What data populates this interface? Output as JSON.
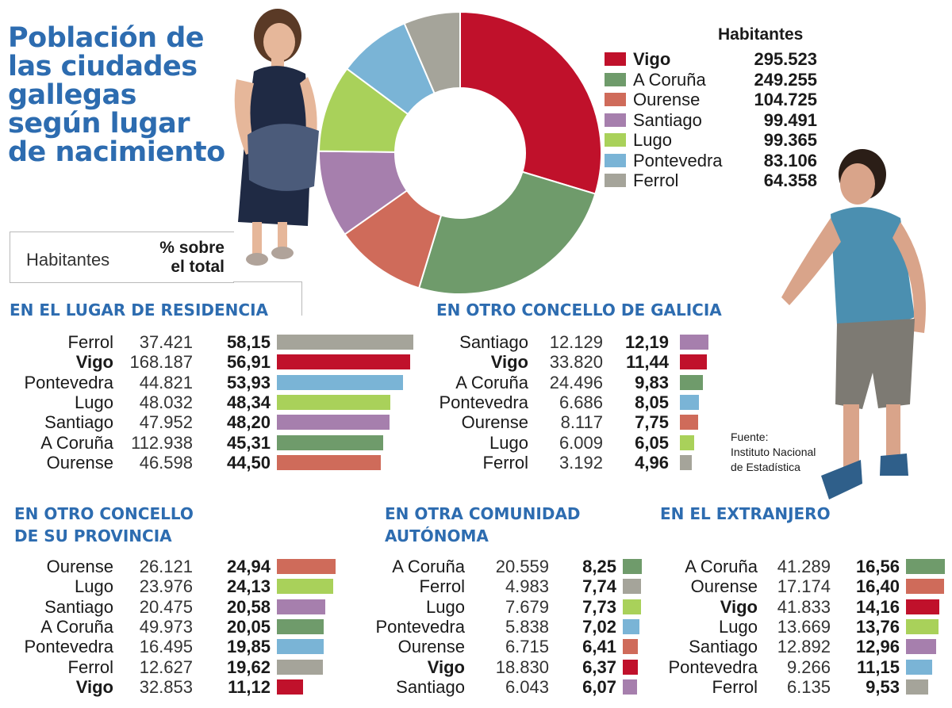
{
  "title": "Población de\nlas ciudades\ngallegas\nsegún lugar\nde nacimiento",
  "legend": {
    "habitantes_label": "Habitantes",
    "pct_label": "% sobre\nel total"
  },
  "source": "Fuente:\nInstituto Nacional\nde Estadística",
  "colors": {
    "Vigo": "#c0112b",
    "A Coruña": "#6f9b6b",
    "Ourense": "#cf6b5a",
    "Santiago": "#a67fad",
    "Lugo": "#a9d15a",
    "Pontevedra": "#7ab4d6",
    "Ferrol": "#a5a49a"
  },
  "chart_data": [
    {
      "type": "pie",
      "title": "Habitantes",
      "categories": [
        "Vigo",
        "A Coruña",
        "Ourense",
        "Santiago",
        "Lugo",
        "Pontevedra",
        "Ferrol"
      ],
      "value_labels": [
        "295.523",
        "249.255",
        "104.725",
        "99.491",
        "99.365",
        "83.106",
        "64.358"
      ],
      "values": [
        295523,
        249255,
        104725,
        99491,
        99365,
        83106,
        64358
      ],
      "donut": true
    },
    {
      "type": "bar",
      "title": "EN EL LUGAR DE RESIDENCIA",
      "categories": [
        "Ferrol",
        "Vigo",
        "Pontevedra",
        "Lugo",
        "Santiago",
        "A Coruña",
        "Ourense"
      ],
      "habitantes": [
        "37.421",
        "168.187",
        "44.821",
        "48.032",
        "47.952",
        "112.938",
        "46.598"
      ],
      "pct_labels": [
        "58,15",
        "56,91",
        "53,93",
        "48,34",
        "48,20",
        "45,31",
        "44,50"
      ],
      "values": [
        58.15,
        56.91,
        53.93,
        48.34,
        48.2,
        45.31,
        44.5
      ]
    },
    {
      "type": "bar",
      "title": "EN OTRO CONCELLO DE GALICIA",
      "categories": [
        "Santiago",
        "Vigo",
        "A Coruña",
        "Pontevedra",
        "Ourense",
        "Lugo",
        "Ferrol"
      ],
      "habitantes": [
        "12.129",
        "33.820",
        "24.496",
        "6.686",
        "8.117",
        "6.009",
        "3.192"
      ],
      "pct_labels": [
        "12,19",
        "11,44",
        "9,83",
        "8,05",
        "7,75",
        "6,05",
        "4,96"
      ],
      "values": [
        12.19,
        11.44,
        9.83,
        8.05,
        7.75,
        6.05,
        4.96
      ]
    },
    {
      "type": "bar",
      "title": "EN OTRO CONCELLO\nDE SU PROVINCIA",
      "categories": [
        "Ourense",
        "Lugo",
        "Santiago",
        "A Coruña",
        "Pontevedra",
        "Ferrol",
        "Vigo"
      ],
      "habitantes": [
        "26.121",
        "23.976",
        "20.475",
        "49.973",
        "16.495",
        "12.627",
        "32.853"
      ],
      "pct_labels": [
        "24,94",
        "24,13",
        "20,58",
        "20,05",
        "19,85",
        "19,62",
        "11,12"
      ],
      "values": [
        24.94,
        24.13,
        20.58,
        20.05,
        19.85,
        19.62,
        11.12
      ]
    },
    {
      "type": "bar",
      "title": "EN OTRA COMUNIDAD\nAUTÓNOMA",
      "categories": [
        "A Coruña",
        "Ferrol",
        "Lugo",
        "Pontevedra",
        "Ourense",
        "Vigo",
        "Santiago"
      ],
      "habitantes": [
        "20.559",
        "4.983",
        "7.679",
        "5.838",
        "6.715",
        "18.830",
        "6.043"
      ],
      "pct_labels": [
        "8,25",
        "7,74",
        "7,73",
        "7,02",
        "6,41",
        "6,37",
        "6,07"
      ],
      "values": [
        8.25,
        7.74,
        7.73,
        7.02,
        6.41,
        6.37,
        6.07
      ]
    },
    {
      "type": "bar",
      "title": "EN EL EXTRANJERO",
      "categories": [
        "A Coruña",
        "Ourense",
        "Vigo",
        "Lugo",
        "Santiago",
        "Pontevedra",
        "Ferrol"
      ],
      "habitantes": [
        "41.289",
        "17.174",
        "41.833",
        "13.669",
        "12.892",
        "9.266",
        "6.135"
      ],
      "pct_labels": [
        "16,56",
        "16,40",
        "14,16",
        "13,76",
        "12,96",
        "11,15",
        "9,53"
      ],
      "values": [
        16.56,
        16.4,
        14.16,
        13.76,
        12.96,
        11.15,
        9.53
      ]
    }
  ]
}
